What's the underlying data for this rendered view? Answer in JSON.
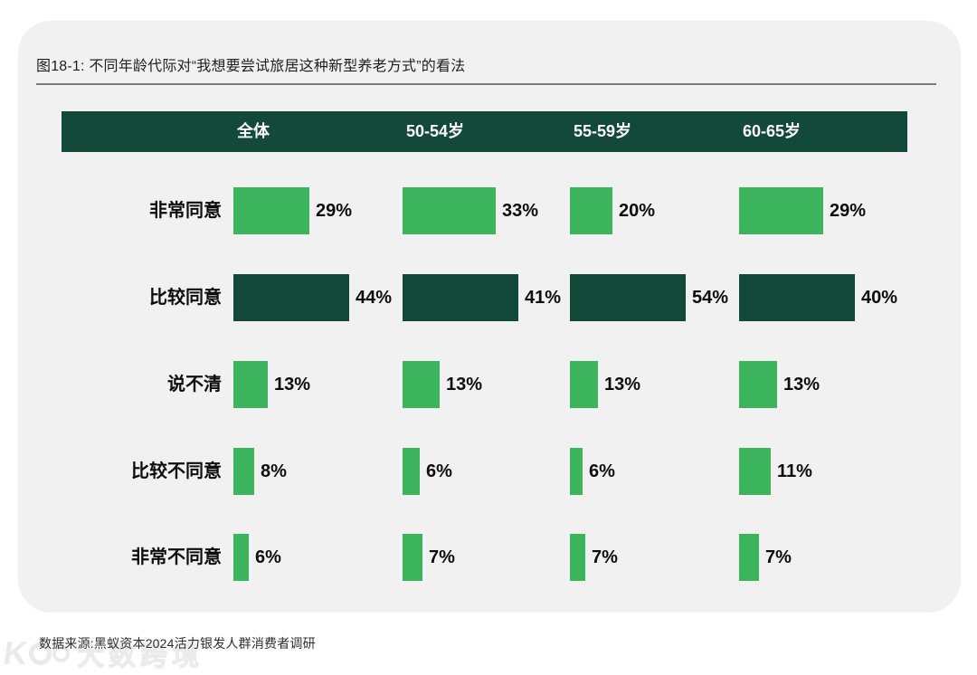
{
  "title": "图18-1: 不同年龄代际对“我想要尝试旅居这种新型养老方式”的看法",
  "source": "数据来源:黑蚁资本2024活力银发人群消费者调研",
  "watermark": "大数跨境",
  "colors": {
    "light_green": "#3cb45e",
    "dark_green": "#134939",
    "card_bg": "#f0f1f0",
    "header_text": "#ffffff",
    "rule_gray": "#7b7b7b"
  },
  "chart_data": {
    "type": "bar",
    "orientation": "horizontal",
    "unit": "%",
    "title": "图18-1: 不同年龄代际对“我想要尝试旅居这种新型养老方式”的看法",
    "columns": [
      "全体",
      "50-54岁",
      "55-59岁",
      "60-65岁"
    ],
    "categories": [
      "非常同意",
      "比较同意",
      "说不清",
      "比较不同意",
      "非常不同意"
    ],
    "series": [
      {
        "name": "全体",
        "values": [
          29,
          44,
          13,
          8,
          6
        ]
      },
      {
        "name": "50-54岁",
        "values": [
          33,
          41,
          13,
          6,
          7
        ]
      },
      {
        "name": "55-59岁",
        "values": [
          20,
          54,
          13,
          6,
          7
        ]
      },
      {
        "name": "60-65岁",
        "values": [
          29,
          40,
          13,
          11,
          7
        ]
      }
    ],
    "dark_row_index": 1,
    "value_labels_shown": true,
    "scaling_note": "bars scaled relative to each column's max value",
    "legend_position": "none",
    "grid": false
  }
}
